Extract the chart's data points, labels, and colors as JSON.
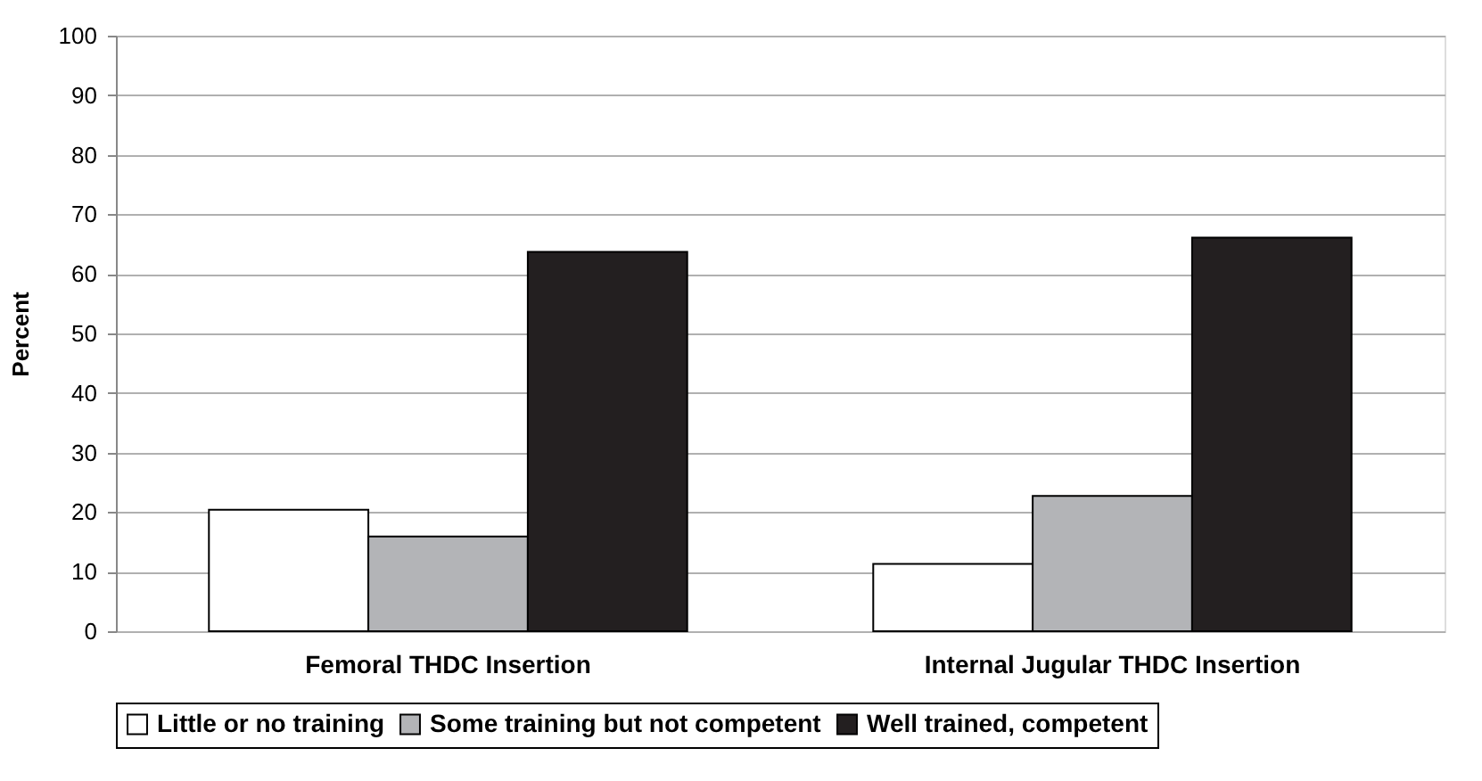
{
  "chart_data": {
    "type": "bar",
    "ylabel": "Percent",
    "categories": [
      "Femoral THDC Insertion",
      "Internal Jugular THDC Insertion"
    ],
    "series": [
      {
        "name": "Little or no training",
        "color": "#ffffff",
        "values": [
          20.4,
          11.3
        ]
      },
      {
        "name": "Some training but not competent",
        "color": "#b3b4b7",
        "values": [
          15.9,
          22.7
        ]
      },
      {
        "name": "Well trained, competent",
        "color": "#231f20",
        "values": [
          63.7,
          66.1
        ]
      }
    ],
    "ylim": [
      0,
      100
    ],
    "yticks": [
      0,
      10,
      20,
      30,
      40,
      50,
      60,
      70,
      80,
      90,
      100
    ],
    "grid": "y",
    "legend": "bottom"
  }
}
